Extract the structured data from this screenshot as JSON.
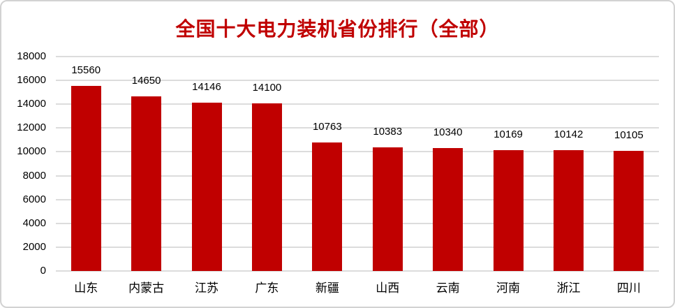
{
  "chart_data": {
    "type": "bar",
    "title": "全国十大电力装机省份排行（全部）",
    "categories": [
      "山东",
      "内蒙古",
      "江苏",
      "广东",
      "新疆",
      "山西",
      "云南",
      "河南",
      "浙江",
      "四川"
    ],
    "values": [
      15560,
      14650,
      14146,
      14100,
      10763,
      10383,
      10340,
      10169,
      10142,
      10105
    ],
    "xlabel": "",
    "ylabel": "",
    "ylim": [
      0,
      18000
    ],
    "ytick_interval": 2000,
    "yticks": [
      0,
      2000,
      4000,
      6000,
      8000,
      10000,
      12000,
      14000,
      16000,
      18000
    ],
    "grid": true,
    "legend_position": "none",
    "data_labels": true,
    "colors": {
      "bar": "#C00000",
      "title": "#C00000",
      "tick_label": "#000000",
      "data_label": "#000000",
      "gridline": "#DCDCDC",
      "card_border": "#D2D2D2",
      "background": "#FFFFFF"
    }
  }
}
